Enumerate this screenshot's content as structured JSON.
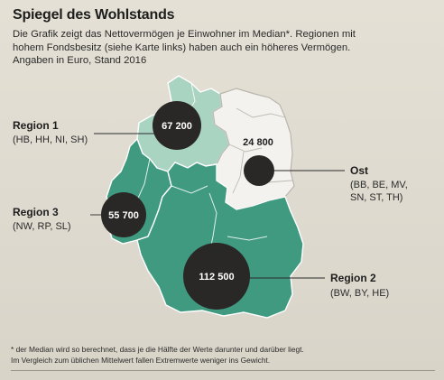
{
  "header": {
    "title": "Spiegel des Wohlstands",
    "intro_lines": [
      "Die Grafik zeigt das Nettovermögen je Einwohner im Median*. Regionen mit",
      "hohem Fondsbesitz (siehe Karte links) haben auch ein höheres Vermögen.",
      "Angaben in Euro, Stand 2016"
    ]
  },
  "colors": {
    "high_fund_region": "#3f9a80",
    "low_fund_region": "#a9d4c2",
    "ost_region": "#f3f2ee",
    "bubble": "#2a2826",
    "bubble_text": "#ffffff"
  },
  "map": {
    "regions": [
      {
        "name": "Region 1",
        "states": "(HB, HH, NI, SH)",
        "median_net_wealth": "67 200",
        "value": 67200
      },
      {
        "name": "Region 3",
        "states": "(NW, RP, SL)",
        "median_net_wealth": "55 700",
        "value": 55700
      },
      {
        "name": "Ost",
        "states_lines": [
          "(BB, BE, MV,",
          "SN, ST, TH)"
        ],
        "median_net_wealth": "24 800",
        "value": 24800
      },
      {
        "name": "Region 2",
        "states": "(BW, BY, HE)",
        "median_net_wealth": "112 500",
        "value": 112500
      }
    ]
  },
  "footnote_lines": [
    "* der Median wird so berechnet, dass je die Hälfte der Werte darunter und darüber liegt.",
    "Im Vergleich zum üblichen Mittelwert fallen Extremwerte weniger ins Gewicht."
  ]
}
